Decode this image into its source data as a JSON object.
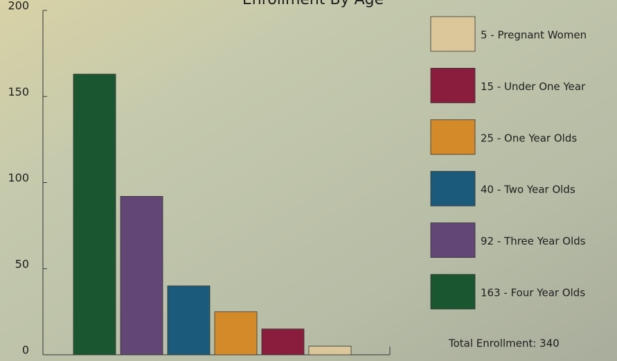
{
  "chart_data": {
    "type": "bar",
    "title": "Enrollment By Age",
    "categories": [
      "163 - Four Year Olds",
      "92 - Three Year Olds",
      "40 - Two Year Olds",
      "25 - One Year Olds",
      "15 - Under One Year",
      "5 - Pregnant Women"
    ],
    "values": [
      163,
      92,
      40,
      25,
      15,
      5
    ],
    "colors": [
      "#1a5630",
      "#624676",
      "#1b5a7a",
      "#d58a2a",
      "#8a1c3e",
      "#dcc79a"
    ],
    "ylim": [
      0,
      200
    ],
    "yticks": [
      0,
      50,
      100,
      150,
      200
    ],
    "grid": false,
    "annotation": "Total Enrollment: 340"
  }
}
